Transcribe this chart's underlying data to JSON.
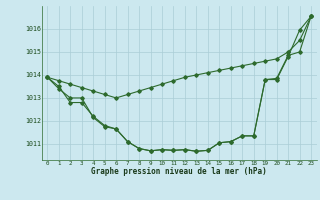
{
  "title": "Graphe pression niveau de la mer (hPa)",
  "bg_color": "#cce8ef",
  "grid_color": "#aacdd6",
  "line_color": "#2d6a2d",
  "x_ticks": [
    0,
    1,
    2,
    3,
    4,
    5,
    6,
    7,
    8,
    9,
    10,
    11,
    12,
    13,
    14,
    15,
    16,
    17,
    18,
    19,
    20,
    21,
    22,
    23
  ],
  "y_ticks": [
    1011,
    1012,
    1013,
    1014,
    1015,
    1016
  ],
  "ylim": [
    1010.3,
    1017.0
  ],
  "xlim": [
    -0.5,
    23.5
  ],
  "series1": [
    1013.9,
    1013.5,
    1012.8,
    1012.8,
    1012.2,
    1011.8,
    1011.65,
    1011.1,
    1010.8,
    1010.7,
    1010.75,
    1010.72,
    1010.75,
    1010.68,
    1010.72,
    1011.05,
    1011.1,
    1011.35,
    1011.35,
    1013.8,
    1013.8,
    1014.8,
    1015.95,
    1016.55
  ],
  "series2": [
    1013.9,
    1013.75,
    1013.6,
    1013.45,
    1013.3,
    1013.15,
    1013.0,
    1013.15,
    1013.3,
    1013.45,
    1013.6,
    1013.75,
    1013.9,
    1014.0,
    1014.1,
    1014.2,
    1014.3,
    1014.4,
    1014.5,
    1014.6,
    1014.7,
    1015.0,
    1015.5,
    1016.55
  ],
  "series3": [
    1013.9,
    1013.4,
    1013.0,
    1013.0,
    1012.15,
    1011.75,
    1011.65,
    1011.1,
    1010.8,
    1010.7,
    1010.75,
    1010.72,
    1010.75,
    1010.68,
    1010.72,
    1011.05,
    1011.1,
    1011.35,
    1011.35,
    1013.8,
    1013.85,
    1014.85,
    1015.0,
    1016.55
  ]
}
